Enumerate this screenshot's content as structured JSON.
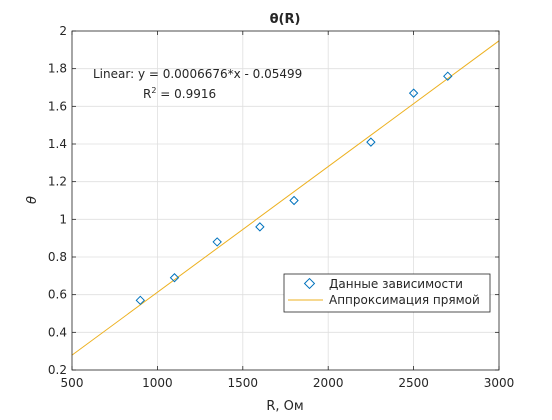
{
  "chart_data": {
    "type": "scatter",
    "title": "θ(R)",
    "xlabel": "R, Ом",
    "ylabel": "θ",
    "xlim": [
      500,
      3000
    ],
    "ylim": [
      0.2,
      2.0
    ],
    "xticks": [
      500,
      1000,
      1500,
      2000,
      2500,
      3000
    ],
    "yticks": [
      0.2,
      0.4,
      0.6,
      0.8,
      1.0,
      1.2,
      1.4,
      1.6,
      1.8,
      2.0
    ],
    "xtick_labels": [
      "500",
      "1000",
      "1500",
      "2000",
      "2500",
      "3000"
    ],
    "ytick_labels": [
      "0.2",
      "0.4",
      "0.6",
      "0.8",
      "1",
      "1.2",
      "1.4",
      "1.6",
      "1.8",
      "2"
    ],
    "grid": true,
    "legend_position": "lower-right",
    "series": [
      {
        "name": "Данные зависимости",
        "kind": "markers",
        "marker": "diamond",
        "color": "#0072BD",
        "x": [
          900,
          1100,
          1350,
          1600,
          1800,
          2250,
          2500,
          2700
        ],
        "y": [
          0.57,
          0.69,
          0.88,
          0.96,
          1.1,
          1.41,
          1.67,
          1.76
        ]
      },
      {
        "name": "Аппроксимация прямой",
        "kind": "line",
        "color": "#EDB120",
        "slope": 0.0006676,
        "intercept": -0.05499
      }
    ],
    "annotation": {
      "equation": "Linear:  y = 0.0006676*x - 0.05499",
      "r2_prefix": "R",
      "r2_exponent": "2",
      "r2_value": " = 0.9916"
    }
  }
}
